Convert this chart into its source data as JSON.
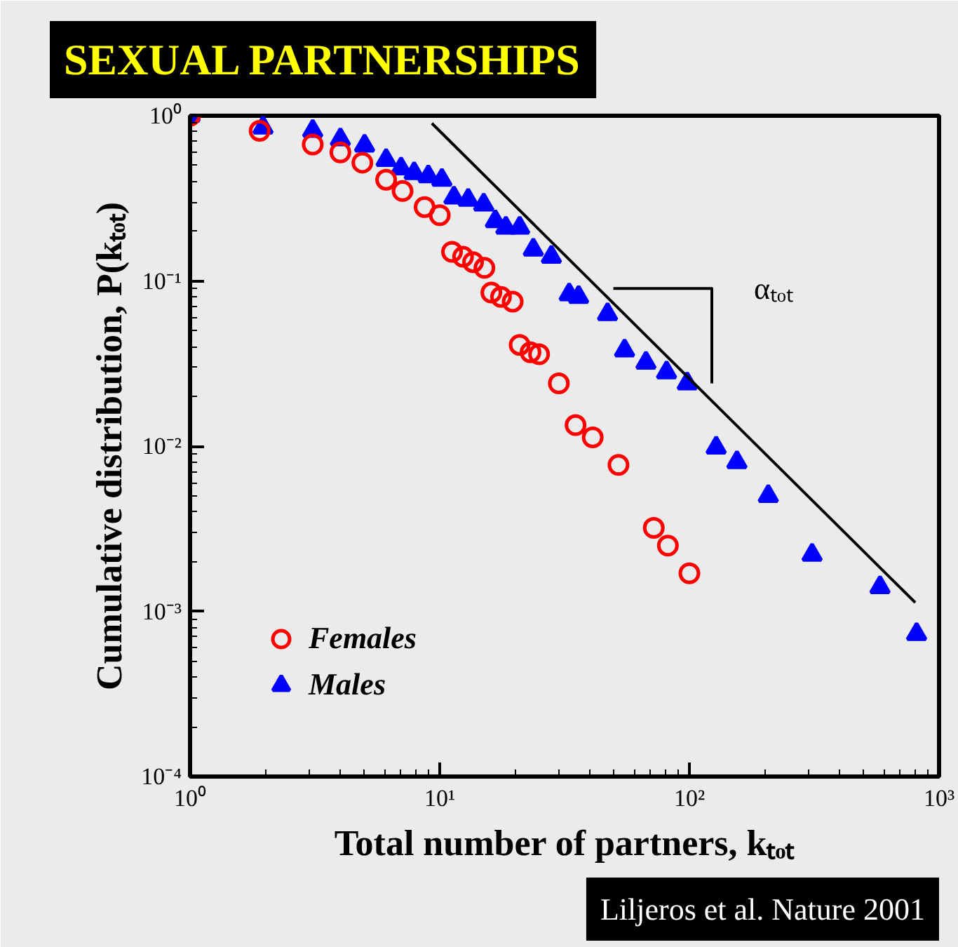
{
  "chart_data": {
    "type": "scatter",
    "title": "SEXUAL PARTNERSHIPS",
    "xlabel": "Total number of partners, kₜₒₜ",
    "ylabel": "Cumulative distribution, P(kₜₒₜ)",
    "log": "xy",
    "xlim": [
      1,
      1000
    ],
    "ylim": [
      0.0001,
      1
    ],
    "xticks": [
      {
        "value": 1,
        "label": "10⁰"
      },
      {
        "value": 10,
        "label": "10¹"
      },
      {
        "value": 100,
        "label": "10²"
      },
      {
        "value": 1000,
        "label": "10³"
      }
    ],
    "yticks": [
      {
        "value": 0.0001,
        "label": "10⁻⁴"
      },
      {
        "value": 0.001,
        "label": "10⁻³"
      },
      {
        "value": 0.01,
        "label": "10⁻²"
      },
      {
        "value": 0.1,
        "label": "10⁻¹"
      },
      {
        "value": 1,
        "label": "10⁰"
      }
    ],
    "grid": false,
    "legend": "bottom left",
    "series": [
      {
        "name": "Females",
        "color": "#ff0000",
        "marker": "circle",
        "x": [
          1,
          1.9,
          3.1,
          4.0,
          4.9,
          6.1,
          7.1,
          8.7,
          10,
          11.2,
          12.4,
          13.6,
          15.1,
          16.1,
          17.6,
          19.6,
          20.9,
          23.1,
          25,
          30,
          35,
          41,
          52,
          72,
          82,
          100
        ],
        "values": [
          1,
          0.81,
          0.67,
          0.6,
          0.52,
          0.41,
          0.35,
          0.28,
          0.25,
          0.15,
          0.14,
          0.13,
          0.12,
          0.085,
          0.08,
          0.075,
          0.041,
          0.037,
          0.036,
          0.024,
          0.0134,
          0.0113,
          0.0077,
          0.0032,
          0.0025,
          0.0017
        ]
      },
      {
        "name": "Males",
        "color": "#0000ff",
        "marker": "triangle",
        "x": [
          1,
          1.96,
          3.1,
          4.0,
          5.0,
          6.1,
          7.0,
          7.9,
          9.0,
          10.2,
          11.4,
          13,
          15,
          16.7,
          18.4,
          20.9,
          23.7,
          28,
          33,
          36,
          47,
          55,
          67,
          81,
          98,
          128,
          155,
          207,
          310,
          580,
          813
        ],
        "values": [
          1,
          0.85,
          0.81,
          0.72,
          0.66,
          0.54,
          0.48,
          0.45,
          0.43,
          0.41,
          0.32,
          0.31,
          0.29,
          0.23,
          0.21,
          0.21,
          0.155,
          0.14,
          0.083,
          0.08,
          0.063,
          0.038,
          0.032,
          0.028,
          0.024,
          0.0098,
          0.008,
          0.005,
          0.0022,
          0.0014,
          0.00073
        ]
      },
      {
        "type": "line",
        "color": "#000000",
        "marker": "none",
        "line_style": "solid",
        "x": [
          9.3,
          803
        ],
        "values": [
          0.9,
          0.00113
        ]
      },
      {
        "type": "line",
        "color": "#000000",
        "marker": "none",
        "line_style": "solid",
        "x": [
          49.6,
          123,
          123
        ],
        "values": [
          0.09,
          0.09,
          0.024
        ]
      }
    ],
    "annotations": [
      "αₜₒₜ",
      "Liljeros et al. Nature 2001"
    ]
  }
}
